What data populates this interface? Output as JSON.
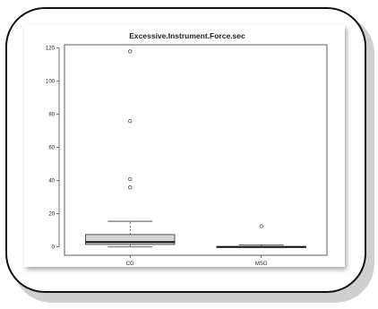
{
  "chart_data": {
    "type": "box",
    "title": "Excessive.Instrument.Force.sec",
    "xlabel": "",
    "ylabel": "",
    "ylim": [
      -5,
      122
    ],
    "yticks": [
      0,
      20,
      40,
      60,
      80,
      100,
      120
    ],
    "categories": [
      "CG",
      "MSG"
    ],
    "boxes": [
      {
        "category": "CG",
        "whisker_low": 0,
        "q1": 1.5,
        "median": 3,
        "q3": 7.5,
        "whisker_high": 15.5,
        "outliers": [
          36,
          41,
          76,
          118
        ]
      },
      {
        "category": "MSG",
        "whisker_low": 0,
        "q1": 0,
        "median": 0,
        "q3": 0.3,
        "whisker_high": 1.2,
        "outliers": [
          12.5
        ]
      }
    ],
    "colors": {
      "box_fill": "#d3d3d3",
      "stroke": "#333333"
    },
    "grid": false
  }
}
